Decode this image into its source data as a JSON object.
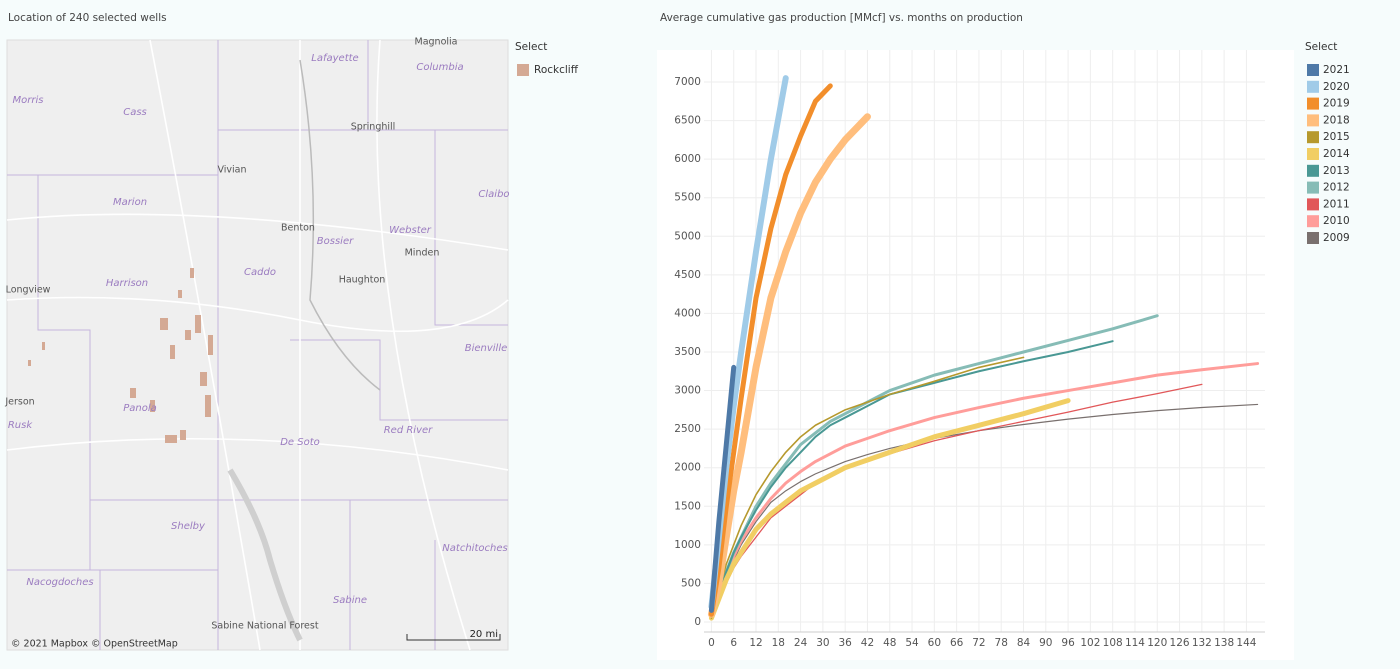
{
  "map": {
    "title": "Location of 240 selected wells",
    "legend_title": "Select",
    "legend_items": [
      "Rockcliff"
    ],
    "places": [
      "Magnolia",
      "Lafayette",
      "Columbia",
      "Morris",
      "Cass",
      "Springhill",
      "Vivian",
      "Marion",
      "Claibo",
      "Benton",
      "Bossier",
      "Webster",
      "Minden",
      "Caddo",
      "Haughton",
      "Longview",
      "Harrison",
      "Bienville",
      "Jerson",
      "Rusk",
      "Panola",
      "De Soto",
      "Red River",
      "Shelby",
      "Natchitoches",
      "Nacogdoches",
      "Sabine",
      "Sabine National Forest"
    ],
    "attribution": "© 2021 Mapbox © OpenStreetMap",
    "scale": "20 mi"
  },
  "chart_data": {
    "type": "line",
    "title": "Average cumulative gas production [MMcf] vs. months on production",
    "legend_title": "Select",
    "grid": true,
    "x": [
      0,
      2,
      4,
      6,
      8,
      12,
      16,
      20,
      24,
      28,
      32,
      36,
      42,
      48,
      60,
      72,
      84,
      96,
      108,
      120,
      132,
      147
    ],
    "xlim": [
      -2,
      149
    ],
    "ylim": [
      -130,
      7415
    ],
    "xticks": [
      0,
      6,
      12,
      18,
      24,
      30,
      36,
      42,
      48,
      54,
      60,
      66,
      72,
      78,
      84,
      90,
      96,
      102,
      108,
      114,
      120,
      126,
      132,
      138,
      144
    ],
    "yticks": [
      0,
      500,
      1000,
      1500,
      2000,
      2500,
      3000,
      3500,
      4000,
      4500,
      5000,
      5500,
      6000,
      6500,
      7000
    ],
    "series": [
      {
        "name": "2021",
        "color": "#4e79a7",
        "values": [
          150,
          1300,
          2300,
          3300,
          null,
          null,
          null,
          null,
          null,
          null,
          null,
          null,
          null,
          null,
          null,
          null,
          null,
          null,
          null,
          null,
          null,
          null
        ]
      },
      {
        "name": "2020",
        "color": "#a0cbe8",
        "values": [
          200,
          1100,
          2000,
          2800,
          3500,
          4800,
          6000,
          7050,
          null,
          null,
          null,
          null,
          null,
          null,
          null,
          null,
          null,
          null,
          null,
          null,
          null,
          null
        ]
      },
      {
        "name": "2019",
        "color": "#f28e2b",
        "values": [
          100,
          700,
          1500,
          2200,
          2900,
          4200,
          5100,
          5800,
          6300,
          6750,
          6950,
          null,
          null,
          null,
          null,
          null,
          null,
          null,
          null,
          null,
          null,
          null
        ]
      },
      {
        "name": "2018",
        "color": "#ffbe7d",
        "values": [
          100,
          500,
          1100,
          1700,
          2200,
          3300,
          4200,
          4800,
          5300,
          5700,
          6000,
          6250,
          6550,
          null,
          null,
          null,
          null,
          null,
          null,
          null,
          null,
          null
        ]
      },
      {
        "name": "2015",
        "color": "#b6992d",
        "values": [
          50,
          400,
          750,
          1000,
          1250,
          1650,
          1950,
          2200,
          2400,
          2550,
          2650,
          2750,
          2850,
          2950,
          3120,
          3300,
          3430,
          null,
          null,
          null,
          null,
          null
        ]
      },
      {
        "name": "2014",
        "color": "#f1ce63",
        "values": [
          50,
          300,
          550,
          750,
          900,
          1200,
          1400,
          1550,
          1700,
          1800,
          1900,
          2000,
          2100,
          2200,
          2400,
          2550,
          2700,
          2870,
          null,
          null,
          null,
          null
        ]
      },
      {
        "name": "2013",
        "color": "#499894",
        "values": [
          50,
          350,
          650,
          900,
          1100,
          1450,
          1750,
          2000,
          2200,
          2400,
          2550,
          2650,
          2800,
          2950,
          3100,
          3250,
          3380,
          3500,
          3640,
          null,
          null,
          null
        ]
      },
      {
        "name": "2012",
        "color": "#86bcb6",
        "values": [
          50,
          350,
          650,
          900,
          1100,
          1500,
          1800,
          2050,
          2300,
          2450,
          2600,
          2700,
          2850,
          3000,
          3200,
          3350,
          3500,
          3650,
          3800,
          3970,
          null,
          null
        ]
      },
      {
        "name": "2011",
        "color": "#e15759",
        "values": [
          50,
          250,
          500,
          700,
          850,
          1100,
          1350,
          1500,
          1650,
          1800,
          1900,
          1980,
          2080,
          2180,
          2350,
          2480,
          2600,
          2720,
          2850,
          2960,
          3080,
          null
        ]
      },
      {
        "name": "2010",
        "color": "#ff9d9a",
        "values": [
          50,
          300,
          600,
          850,
          1050,
          1350,
          1600,
          1800,
          1950,
          2080,
          2180,
          2280,
          2380,
          2480,
          2650,
          2780,
          2900,
          3000,
          3100,
          3200,
          3270,
          3350
        ]
      },
      {
        "name": "2009",
        "color": "#79706e",
        "values": [
          50,
          300,
          550,
          800,
          1000,
          1300,
          1550,
          1700,
          1820,
          1920,
          2000,
          2080,
          2170,
          2250,
          2380,
          2480,
          2560,
          2630,
          2690,
          2740,
          2780,
          2820
        ]
      }
    ]
  }
}
